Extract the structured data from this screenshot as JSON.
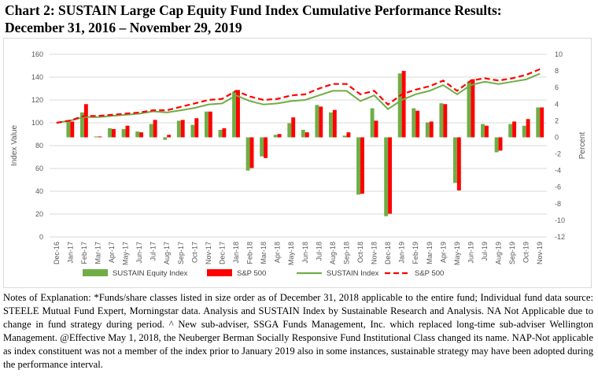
{
  "title_line1": "Chart 2:  SUSTAIN Large Cap Equity Fund Index Cumulative Performance Results:",
  "title_line2": "December 31, 2016 – November 29, 2019",
  "notes": "Notes of Explanation:  *Funds/share classes listed in size order as of December 31, 2018 applicable to the entire fund; Individual fund data source:  STEELE Mutual Fund Expert, Morningstar data. Analysis and SUSTAIN Index by Sustainable Research and Analysis.  NA Not Applicable due to change in fund strategy during period. ^ New sub-adviser, SSGA Funds Management, Inc. which replaced long-time sub-adviser Wellington Management. @Effective May 1, 2018, the Neuberger Berman Socially Responsive Fund Institutional Class changed its name. NAP-Not applicable as index constituent was not a member of the index prior to January 2019 also in some instances, sustainable strategy may have been adopted during the performance interval.",
  "colors": {
    "sustain_bar": "#70ad47",
    "sp_bar": "#ff0000",
    "sustain_line": "#70ad47",
    "sp_line": "#ff0000",
    "grid": "#d9d9d9",
    "text": "#595959"
  },
  "chart_data": {
    "type": "bar",
    "categories": [
      "Dec-16",
      "Jan-17",
      "Feb-17",
      "Mar-17",
      "Apr-17",
      "May-17",
      "Jun-17",
      "Jul-17",
      "Aug-17",
      "Sep-17",
      "Oct-17",
      "Nov-17",
      "Dec-17",
      "Jan-18",
      "Feb-18",
      "Mar-18",
      "Apr-18",
      "May-18",
      "Jun-18",
      "Jul-18",
      "Aug-18",
      "Sep-18",
      "Oct-18",
      "Nov-18",
      "Dec-18",
      "Jan-19",
      "Feb-19",
      "Mar-19",
      "Apr-19",
      "May-19",
      "Jun-19",
      "Jul-19",
      "Aug-19",
      "Sep-19",
      "Oct-19",
      "Nov-19"
    ],
    "y_left": {
      "label": "Index Value",
      "min": 0,
      "max": 160,
      "ticks": [
        0,
        20,
        40,
        60,
        80,
        100,
        120,
        140,
        160
      ]
    },
    "y_right": {
      "label": "Percent",
      "min": -12,
      "max": 10,
      "ticks": [
        -12,
        -10,
        -8,
        -6,
        -4,
        -2,
        0,
        2,
        4,
        6,
        8,
        10
      ]
    },
    "grid": true,
    "legend_position": "bottom",
    "series": [
      {
        "name": "SUSTAIN Equity Index",
        "type": "bar",
        "axis": "right",
        "values": [
          0,
          1.9,
          3.0,
          0.1,
          1.1,
          1.0,
          0.7,
          1.6,
          -0.3,
          2.0,
          1.5,
          3.1,
          0.9,
          5.5,
          -4.0,
          -2.3,
          0.3,
          1.7,
          0.9,
          3.9,
          3.0,
          0.2,
          -6.9,
          3.5,
          -9.5,
          7.7,
          3.5,
          1.8,
          4.1,
          -5.5,
          6.7,
          1.6,
          -1.8,
          1.6,
          1.4,
          3.6
        ]
      },
      {
        "name": "S&P 500",
        "type": "bar",
        "axis": "right",
        "values": [
          0,
          1.9,
          4.0,
          0.1,
          1.0,
          1.4,
          0.6,
          2.1,
          0.3,
          2.1,
          2.3,
          3.1,
          1.1,
          5.7,
          -3.7,
          -2.5,
          0.4,
          2.4,
          0.6,
          3.7,
          3.3,
          0.6,
          -6.8,
          2.0,
          -9.2,
          8.0,
          3.2,
          1.9,
          4.0,
          -6.4,
          7.0,
          1.4,
          -1.6,
          1.9,
          2.2,
          3.6
        ]
      },
      {
        "name": "SUSTAIN Index",
        "type": "line",
        "axis": "left",
        "values": [
          100,
          102,
          105,
          105,
          106,
          107,
          108,
          110,
          109,
          111,
          113,
          116,
          117,
          124,
          119,
          116,
          117,
          119,
          120,
          124,
          128,
          128,
          119,
          124,
          112,
          120,
          125,
          128,
          133,
          125,
          133,
          136,
          134,
          136,
          138,
          143
        ]
      },
      {
        "name": "S&P 500",
        "type": "line",
        "style": "dashed",
        "axis": "left",
        "values": [
          100,
          102,
          106,
          106,
          107,
          108,
          109,
          111,
          111,
          114,
          117,
          120,
          121,
          128,
          123,
          120,
          121,
          124,
          125,
          130,
          134,
          134,
          125,
          128,
          116,
          125,
          129,
          132,
          137,
          128,
          137,
          139,
          137,
          139,
          142,
          147
        ]
      }
    ]
  }
}
